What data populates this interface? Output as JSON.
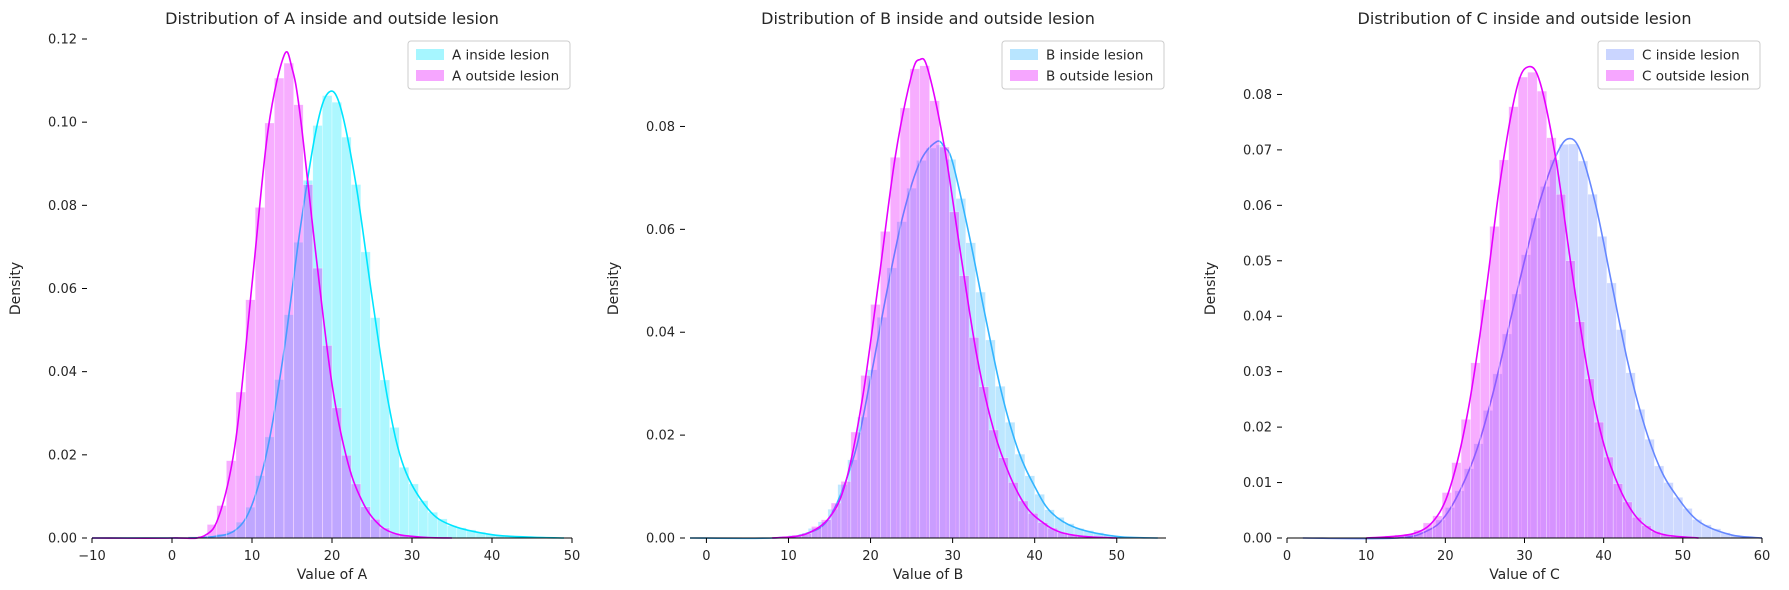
{
  "chart_data": [
    {
      "type": "area",
      "title": "Distribution of A inside and outside lesion",
      "xlabel": "Value of A",
      "ylabel": "Density",
      "xlim": [
        -10,
        50
      ],
      "ylim": [
        0,
        0.12
      ],
      "xticks": [
        "−10",
        "0",
        "10",
        "20",
        "30",
        "40",
        "50"
      ],
      "xtick_values": [
        -10,
        0,
        10,
        20,
        30,
        40,
        50
      ],
      "yticks": [
        "0.00",
        "0.02",
        "0.04",
        "0.06",
        "0.08",
        "0.10",
        "0.12"
      ],
      "ytick_values": [
        0,
        0.02,
        0.04,
        0.06,
        0.08,
        0.1,
        0.12
      ],
      "legend_position": "top-right",
      "grid": false,
      "series": [
        {
          "name": "A inside lesion",
          "color": "#00e5ff",
          "x": [
            -10,
            0,
            5,
            8,
            10,
            12,
            14,
            16,
            18,
            19.5,
            21,
            23,
            25,
            27,
            29,
            32,
            35,
            40,
            45,
            49
          ],
          "y": [
            0,
            0,
            0.0003,
            0.002,
            0.008,
            0.022,
            0.045,
            0.074,
            0.098,
            0.107,
            0.104,
            0.085,
            0.058,
            0.033,
            0.017,
            0.007,
            0.003,
            0.0008,
            0.0002,
            0
          ]
        },
        {
          "name": "A outside lesion",
          "color": "#e600ff",
          "x": [
            -10,
            0,
            4,
            6,
            8,
            10,
            12,
            14,
            15,
            16,
            18,
            20,
            22,
            24,
            26,
            28,
            30,
            32,
            35
          ],
          "y": [
            0,
            0,
            0.0005,
            0.006,
            0.024,
            0.061,
            0.098,
            0.116,
            0.113,
            0.102,
            0.068,
            0.037,
            0.018,
            0.008,
            0.003,
            0.001,
            0.0004,
            0.0001,
            0
          ]
        }
      ]
    },
    {
      "type": "area",
      "title": "Distribution of B inside and outside lesion",
      "xlabel": "Value of B",
      "ylabel": "Density",
      "xlim": [
        -2,
        56
      ],
      "ylim": [
        0,
        0.097
      ],
      "xticks": [
        "0",
        "10",
        "20",
        "30",
        "40",
        "50"
      ],
      "xtick_values": [
        0,
        10,
        20,
        30,
        40,
        50
      ],
      "yticks": [
        "0.00",
        "0.02",
        "0.04",
        "0.06",
        "0.08"
      ],
      "ytick_values": [
        0,
        0.02,
        0.04,
        0.06,
        0.08
      ],
      "legend_position": "top-right",
      "grid": false,
      "series": [
        {
          "name": "B inside lesion",
          "color": "#33b5ff",
          "x": [
            -2,
            8,
            12,
            15,
            18,
            20,
            22,
            24,
            26,
            28,
            29,
            30,
            32,
            34,
            36,
            38,
            40,
            42,
            45,
            50,
            55
          ],
          "y": [
            0,
            0,
            0.0008,
            0.004,
            0.016,
            0.031,
            0.048,
            0.063,
            0.073,
            0.077,
            0.076,
            0.073,
            0.059,
            0.043,
            0.028,
            0.017,
            0.01,
            0.005,
            0.002,
            0.0003,
            0
          ]
        },
        {
          "name": "B outside lesion",
          "color": "#e600ff",
          "x": [
            8,
            12,
            15,
            17,
            19,
            21,
            23,
            25,
            26,
            27,
            29,
            31,
            33,
            35,
            37,
            39,
            41,
            43,
            46,
            50
          ],
          "y": [
            0,
            0.0007,
            0.004,
            0.011,
            0.027,
            0.05,
            0.074,
            0.09,
            0.093,
            0.091,
            0.076,
            0.055,
            0.035,
            0.021,
            0.012,
            0.006,
            0.003,
            0.0012,
            0.0003,
            0
          ]
        }
      ]
    },
    {
      "type": "area",
      "title": "Distribution of C inside and outside lesion",
      "xlabel": "Value of C",
      "ylabel": "Density",
      "xlim": [
        0,
        60
      ],
      "ylim": [
        0,
        0.09
      ],
      "xticks": [
        "0",
        "10",
        "20",
        "30",
        "40",
        "50",
        "60"
      ],
      "xtick_values": [
        0,
        10,
        20,
        30,
        40,
        50,
        60
      ],
      "yticks": [
        "0.00",
        "0.01",
        "0.02",
        "0.03",
        "0.04",
        "0.05",
        "0.06",
        "0.07",
        "0.08"
      ],
      "ytick_values": [
        0,
        0.01,
        0.02,
        0.03,
        0.04,
        0.05,
        0.06,
        0.07,
        0.08
      ],
      "legend_position": "top-right",
      "grid": false,
      "series": [
        {
          "name": "C inside lesion",
          "color": "#6688ff",
          "x": [
            2,
            14,
            18,
            20,
            22,
            24,
            26,
            28,
            30,
            32,
            34,
            35.5,
            37,
            39,
            41,
            43,
            45,
            47,
            49,
            52,
            56,
            60
          ],
          "y": [
            0,
            0,
            0.0015,
            0.004,
            0.009,
            0.016,
            0.026,
            0.038,
            0.05,
            0.061,
            0.069,
            0.072,
            0.07,
            0.06,
            0.046,
            0.032,
            0.021,
            0.013,
            0.008,
            0.003,
            0.0006,
            0
          ]
        },
        {
          "name": "C outside lesion",
          "color": "#e600ff",
          "x": [
            10,
            16,
            19,
            21,
            23,
            25,
            27,
            29,
            30.5,
            32,
            34,
            36,
            38,
            40,
            42,
            44,
            46,
            48,
            52
          ],
          "y": [
            0,
            0.0008,
            0.004,
            0.011,
            0.024,
            0.043,
            0.065,
            0.081,
            0.085,
            0.082,
            0.068,
            0.048,
            0.03,
            0.017,
            0.009,
            0.004,
            0.0015,
            0.0005,
            0
          ]
        }
      ]
    }
  ]
}
